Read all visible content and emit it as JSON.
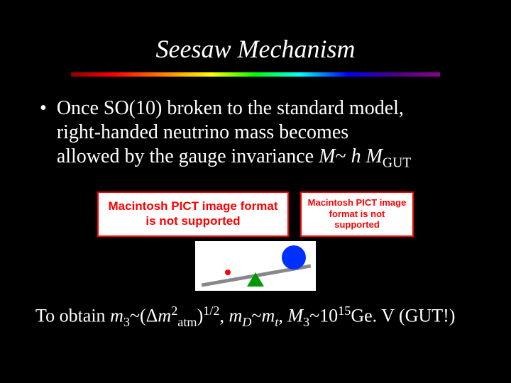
{
  "title": "Seesaw Mechanism",
  "bullet": {
    "line1": "Once SO(10) broken to the standard model,",
    "line2": "right-handed neutrino mass becomes",
    "line3_a": "allowed by the gauge invariance ",
    "line3_M": "M",
    "line3_tilde": "~ ",
    "line3_h": "h ",
    "line3_Mgut_M": "M",
    "line3_Mgut_sub": "GUT"
  },
  "pict_error": "Macintosh PICT image format is not supported",
  "bottom": {
    "prefix": "To obtain ",
    "m": "m",
    "sub3": "3",
    "tilde1": "~(",
    "delta": "Δ",
    "m2": "m",
    "sup2": "2",
    "subatm": "atm",
    "close_half": ")",
    "half": "1/2",
    "comma1": ", ",
    "mD": "m",
    "subD": "D",
    "tilde2": "~",
    "mt": "m",
    "subt": "t",
    "comma2": ", ",
    "M3": "M",
    "sub3b": "3",
    "tilde3": "~10",
    "sup15": "15",
    "gev": "Ge. V (GUT!)"
  },
  "colors": {
    "background": "#000000",
    "text": "#ffffff",
    "error_border": "#ff0000",
    "fulcrum": "#009900",
    "big_ball": "#0030ff",
    "small_ball": "#ff0000",
    "bar": "#888888"
  },
  "seesaw": {
    "rotation_deg": -10,
    "big_ball_diameter": 34,
    "small_ball_diameter": 8
  }
}
